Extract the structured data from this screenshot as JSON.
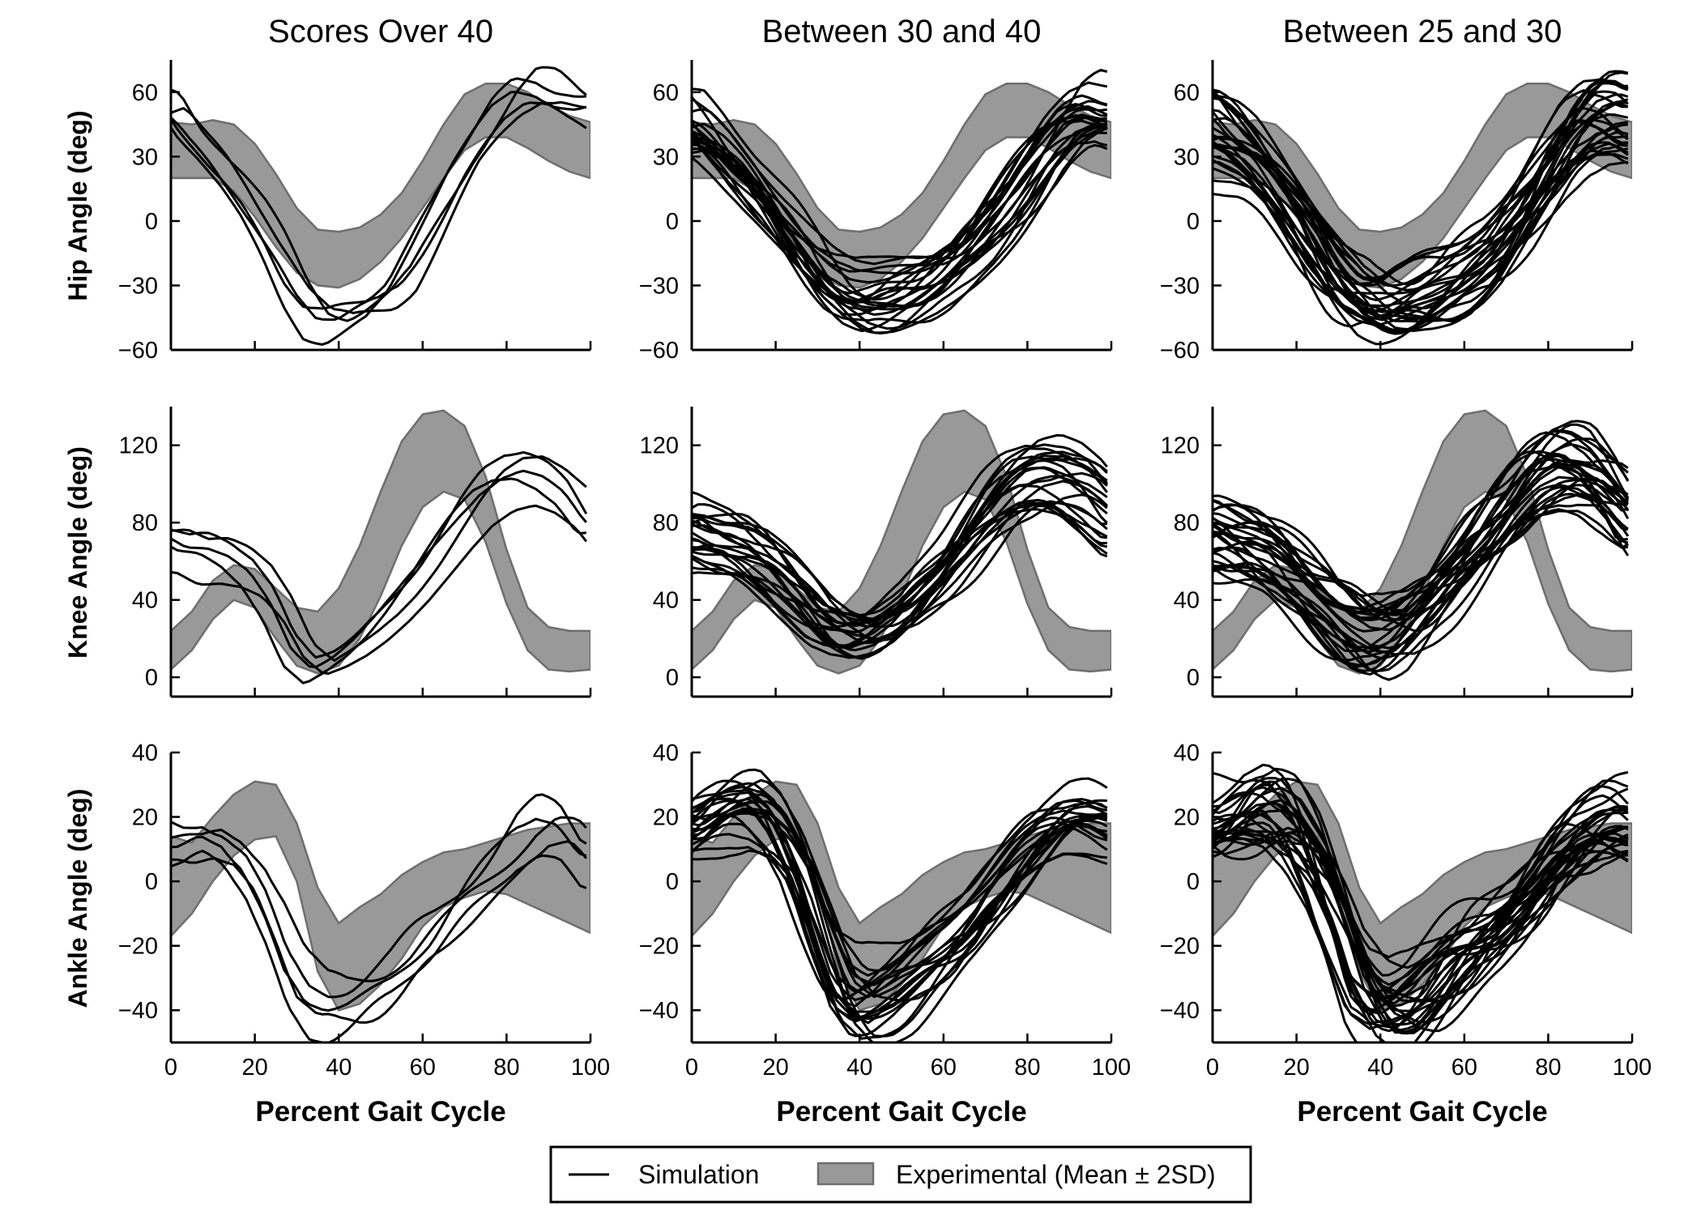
{
  "figure": {
    "column_titles": [
      "Scores Over 40",
      "Between 30 and 40",
      "Between 25 and 30"
    ],
    "row_labels": [
      "Hip Angle (deg)",
      "Knee Angle (deg)",
      "Ankle Angle (deg)"
    ],
    "xlabel": "Percent Gait Cycle",
    "legend": {
      "simulation": "Simulation",
      "experimental": "Experimental (Mean ± 2SD)"
    },
    "colors": {
      "line": "#000000",
      "band_fill": "#999999",
      "band_edge": "#6e6e6e",
      "background": "#ffffff"
    }
  },
  "chart_data": [
    {
      "type": "line",
      "title": "Hip Angle",
      "ylabel": "Hip Angle (deg)",
      "xlabel": "Percent Gait Cycle",
      "xlim": [
        0,
        100
      ],
      "ylim": [
        -60,
        75
      ],
      "xticks": [
        0,
        20,
        40,
        60,
        80,
        100
      ],
      "yticks": [
        -60,
        -30,
        0,
        30,
        60
      ],
      "experimental_band": {
        "x": [
          0,
          5,
          10,
          15,
          20,
          25,
          30,
          35,
          40,
          45,
          50,
          55,
          60,
          65,
          70,
          75,
          80,
          85,
          90,
          95,
          100
        ],
        "lower": [
          20,
          20,
          20,
          14,
          2,
          -12,
          -24,
          -30,
          -31,
          -27,
          -19,
          -8,
          6,
          20,
          33,
          39,
          39,
          34,
          28,
          23,
          20
        ],
        "upper": [
          46,
          45,
          47,
          45,
          36,
          22,
          6,
          -4,
          -5,
          -3,
          3,
          13,
          28,
          45,
          59,
          64,
          64,
          60,
          54,
          49,
          46
        ]
      },
      "ensembles": [
        {
          "panel": "Scores Over 40",
          "n": 5,
          "x": [
            0,
            5,
            10,
            15,
            20,
            25,
            30,
            35,
            40,
            45,
            50,
            55,
            60,
            65,
            70,
            75,
            80,
            85,
            90,
            95,
            100
          ],
          "mean": [
            55,
            42,
            32,
            20,
            6,
            -10,
            -28,
            -40,
            -42,
            -38,
            -34,
            -25,
            -8,
            10,
            28,
            42,
            55,
            63,
            62,
            56,
            52
          ],
          "spread": 8,
          "wobble": 2.5
        },
        {
          "panel": "Between 30 and 40",
          "n": 22,
          "x": [
            0,
            5,
            10,
            15,
            20,
            25,
            30,
            35,
            40,
            45,
            50,
            55,
            60,
            65,
            70,
            75,
            80,
            85,
            90,
            95,
            100
          ],
          "mean": [
            44,
            36,
            26,
            14,
            0,
            -14,
            -26,
            -34,
            -38,
            -37,
            -34,
            -30,
            -24,
            -16,
            -6,
            6,
            20,
            34,
            44,
            48,
            45
          ],
          "spread": 13,
          "wobble": 4
        },
        {
          "panel": "Between 25 and 30",
          "n": 28,
          "x": [
            0,
            5,
            10,
            15,
            20,
            25,
            30,
            35,
            40,
            45,
            50,
            55,
            60,
            65,
            70,
            75,
            80,
            85,
            90,
            95,
            100
          ],
          "mean": [
            44,
            38,
            30,
            18,
            4,
            -12,
            -26,
            -36,
            -40,
            -39,
            -36,
            -32,
            -26,
            -18,
            -6,
            8,
            24,
            40,
            50,
            52,
            48
          ],
          "spread": 16,
          "wobble": 5
        }
      ]
    },
    {
      "type": "line",
      "title": "Knee Angle",
      "ylabel": "Knee Angle (deg)",
      "xlabel": "Percent Gait Cycle",
      "xlim": [
        0,
        100
      ],
      "ylim": [
        -10,
        140
      ],
      "xticks": [
        0,
        20,
        40,
        60,
        80,
        100
      ],
      "yticks": [
        0,
        40,
        80,
        120
      ],
      "experimental_band": {
        "x": [
          0,
          5,
          10,
          15,
          20,
          25,
          30,
          35,
          40,
          45,
          50,
          55,
          60,
          65,
          70,
          75,
          80,
          85,
          90,
          95,
          100
        ],
        "lower": [
          4,
          14,
          30,
          40,
          36,
          20,
          6,
          2,
          6,
          20,
          42,
          68,
          88,
          96,
          92,
          70,
          38,
          14,
          4,
          3,
          4
        ],
        "upper": [
          24,
          34,
          50,
          58,
          56,
          46,
          36,
          34,
          46,
          68,
          96,
          122,
          136,
          138,
          130,
          104,
          66,
          36,
          26,
          24,
          24
        ]
      },
      "ensembles": [
        {
          "panel": "Scores Over 40",
          "n": 5,
          "x": [
            0,
            5,
            10,
            15,
            20,
            25,
            30,
            35,
            40,
            45,
            50,
            55,
            60,
            65,
            70,
            75,
            80,
            85,
            90,
            95,
            100
          ],
          "mean": [
            72,
            66,
            66,
            62,
            54,
            38,
            14,
            4,
            10,
            18,
            28,
            40,
            54,
            70,
            86,
            100,
            108,
            110,
            104,
            94,
            78
          ],
          "spread": 8,
          "wobble": 2.5
        },
        {
          "panel": "Between 30 and 40",
          "n": 22,
          "x": [
            0,
            5,
            10,
            15,
            20,
            25,
            30,
            35,
            40,
            45,
            50,
            55,
            60,
            65,
            70,
            75,
            80,
            85,
            90,
            95,
            100
          ],
          "mean": [
            76,
            72,
            70,
            64,
            54,
            42,
            30,
            24,
            22,
            26,
            34,
            46,
            58,
            72,
            86,
            98,
            106,
            108,
            104,
            96,
            84
          ],
          "spread": 12,
          "wobble": 4
        },
        {
          "panel": "Between 25 and 30",
          "n": 28,
          "x": [
            0,
            5,
            10,
            15,
            20,
            25,
            30,
            35,
            40,
            45,
            50,
            55,
            60,
            65,
            70,
            75,
            80,
            85,
            90,
            95,
            100
          ],
          "mean": [
            72,
            68,
            64,
            58,
            48,
            38,
            28,
            20,
            18,
            22,
            32,
            44,
            58,
            72,
            84,
            96,
            104,
            106,
            104,
            94,
            80
          ],
          "spread": 20,
          "wobble": 5
        }
      ]
    },
    {
      "type": "line",
      "title": "Ankle Angle",
      "ylabel": "Ankle Angle (deg)",
      "xlabel": "Percent Gait Cycle",
      "xlim": [
        0,
        100
      ],
      "ylim": [
        -50,
        40
      ],
      "xticks": [
        0,
        20,
        40,
        60,
        80,
        100
      ],
      "yticks": [
        -40,
        -20,
        0,
        20,
        40
      ],
      "experimental_band": {
        "x": [
          0,
          5,
          10,
          15,
          20,
          25,
          30,
          35,
          40,
          45,
          50,
          55,
          60,
          65,
          70,
          75,
          80,
          85,
          90,
          95,
          100
        ],
        "lower": [
          -17,
          -10,
          0,
          8,
          13,
          14,
          0,
          -28,
          -40,
          -38,
          -32,
          -24,
          -14,
          -8,
          -5,
          -3,
          -4,
          -7,
          -10,
          -13,
          -16
        ],
        "upper": [
          14,
          12,
          20,
          27,
          31,
          30,
          18,
          -2,
          -13,
          -8,
          -4,
          2,
          6,
          9,
          10,
          12,
          14,
          16,
          17,
          18,
          18
        ]
      },
      "ensembles": [
        {
          "panel": "Scores Over 40",
          "n": 5,
          "x": [
            0,
            5,
            10,
            15,
            20,
            25,
            30,
            35,
            40,
            45,
            50,
            55,
            60,
            65,
            70,
            75,
            80,
            85,
            90,
            95,
            100
          ],
          "mean": [
            8,
            8,
            12,
            10,
            2,
            -14,
            -34,
            -43,
            -43,
            -40,
            -36,
            -32,
            -26,
            -20,
            -12,
            -4,
            4,
            12,
            16,
            14,
            6
          ],
          "spread": 10,
          "wobble": 2.5
        },
        {
          "panel": "Between 30 and 40",
          "n": 22,
          "x": [
            0,
            5,
            10,
            15,
            20,
            25,
            30,
            35,
            40,
            45,
            50,
            55,
            60,
            65,
            70,
            75,
            80,
            85,
            90,
            95,
            100
          ],
          "mean": [
            18,
            22,
            24,
            24,
            18,
            6,
            -14,
            -32,
            -38,
            -36,
            -32,
            -26,
            -20,
            -14,
            -6,
            2,
            10,
            16,
            20,
            20,
            18
          ],
          "spread": 10,
          "wobble": 3
        },
        {
          "panel": "Between 25 and 30",
          "n": 28,
          "x": [
            0,
            5,
            10,
            15,
            20,
            25,
            30,
            35,
            40,
            45,
            50,
            55,
            60,
            65,
            70,
            75,
            80,
            85,
            90,
            95,
            100
          ],
          "mean": [
            16,
            20,
            24,
            24,
            18,
            6,
            -12,
            -32,
            -40,
            -40,
            -36,
            -30,
            -24,
            -18,
            -10,
            -2,
            6,
            12,
            16,
            18,
            16
          ],
          "spread": 12,
          "wobble": 4
        }
      ]
    }
  ]
}
